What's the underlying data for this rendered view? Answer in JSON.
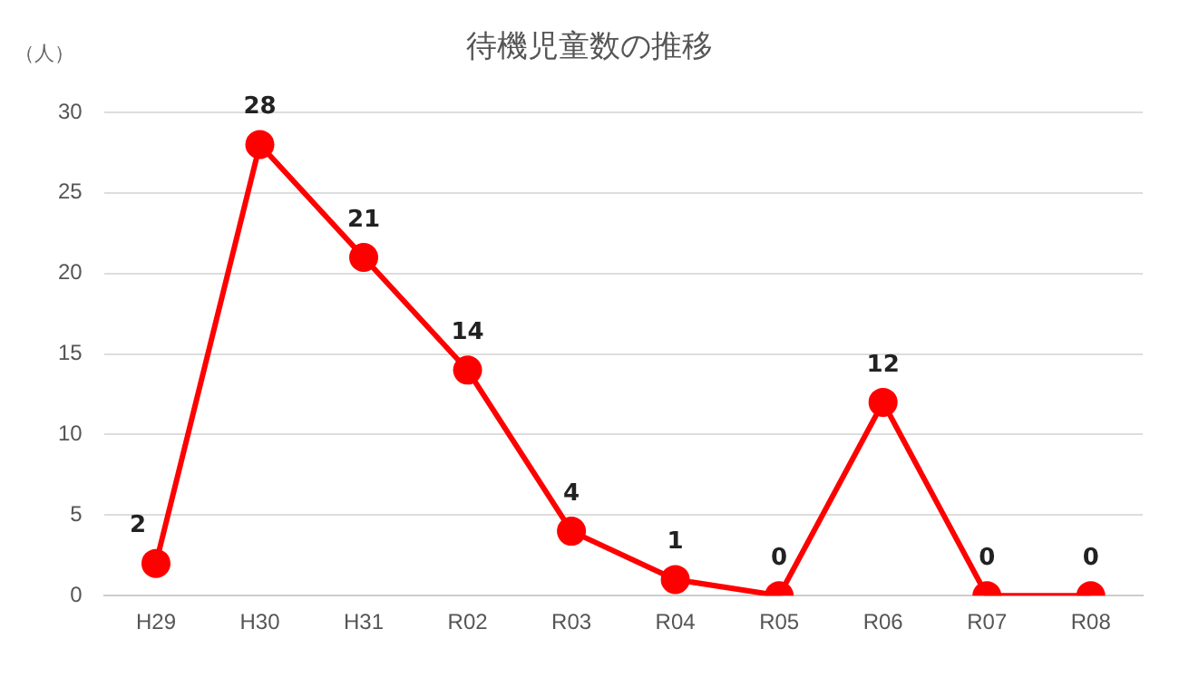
{
  "chart_data": {
    "type": "line",
    "title": "待機児童数の推移",
    "ylabel": "（人）",
    "categories": [
      "H29",
      "H30",
      "H31",
      "R02",
      "R03",
      "R04",
      "R05",
      "R06",
      "R07",
      "R08"
    ],
    "series": [
      {
        "color": "#ff0000",
        "values": [
          2,
          28,
          21,
          14,
          4,
          1,
          0,
          12,
          0,
          0
        ]
      }
    ],
    "ylim": [
      0,
      30
    ],
    "yticks": [
      0,
      5,
      10,
      15,
      20,
      25,
      30
    ],
    "grid": "y",
    "legend": false,
    "marker": "circle",
    "line_style": "solid",
    "data_labels": true
  }
}
